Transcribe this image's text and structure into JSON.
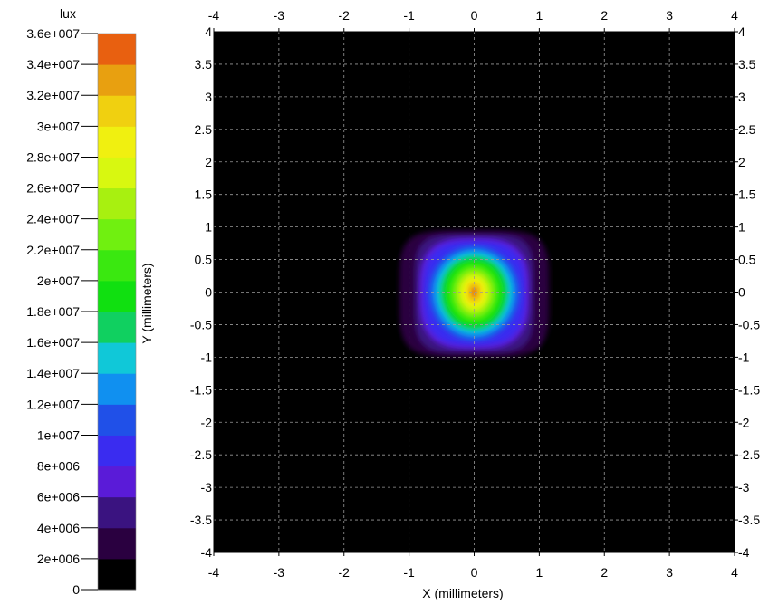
{
  "chart_data": {
    "type": "heatmap",
    "title": "",
    "xlabel": "X (millimeters)",
    "ylabel": "Y (millimeters)",
    "xlim": [
      -4,
      4
    ],
    "ylim": [
      -4,
      4
    ],
    "x_ticks": [
      "-4",
      "-3",
      "-2",
      "-1",
      "0",
      "1",
      "2",
      "3",
      "4"
    ],
    "y_ticks": [
      "4",
      "3.5",
      "3",
      "2.5",
      "2",
      "1.5",
      "1",
      "0.5",
      "0",
      "-0.5",
      "-1",
      "-1.5",
      "-2",
      "-2.5",
      "-3",
      "-3.5",
      "-4"
    ],
    "grid": true,
    "background_color": "#000000",
    "colorbar": {
      "unit": "lux",
      "min": 0,
      "max": 36000000,
      "tick_labels": [
        "3.6e+007",
        "3.4e+007",
        "3.2e+007",
        "3e+007",
        "2.8e+007",
        "2.6e+007",
        "2.4e+007",
        "2.2e+007",
        "2e+007",
        "1.8e+007",
        "1.6e+007",
        "1.4e+007",
        "1.2e+007",
        "1e+007",
        "8e+006",
        "6e+006",
        "4e+006",
        "2e+006",
        "0"
      ],
      "colors": [
        "#000000",
        "#2a0040",
        "#3a1380",
        "#5a1bd8",
        "#3a2cf0",
        "#2050e8",
        "#1090f0",
        "#10c8d8",
        "#10d060",
        "#10e010",
        "#3ae810",
        "#70f010",
        "#a8f010",
        "#d8f810",
        "#f0f010",
        "#f0d010",
        "#e8a010",
        "#e86010"
      ]
    },
    "spot": {
      "center_x": 0,
      "center_y": 0,
      "peak_lux": 35000000,
      "extent_x": [
        -1.15,
        1.15
      ],
      "extent_y": [
        -1.0,
        0.95
      ]
    }
  }
}
